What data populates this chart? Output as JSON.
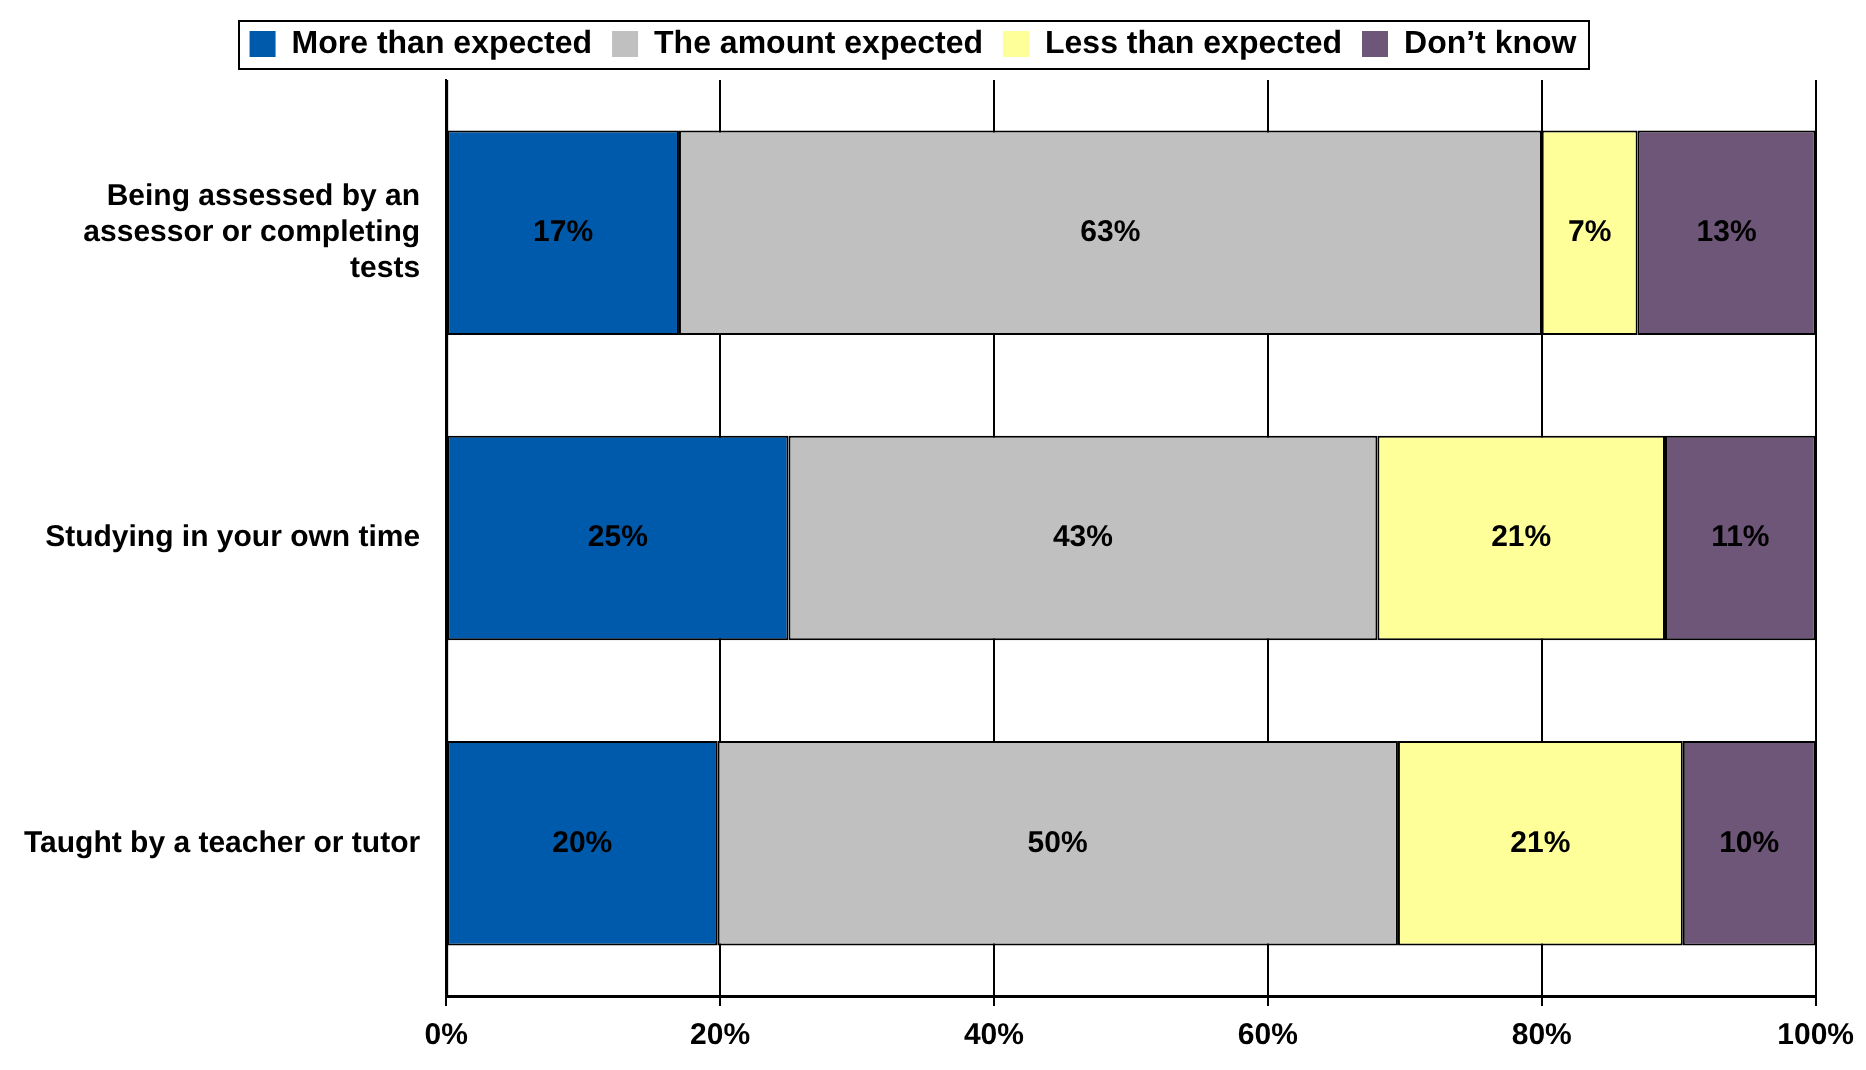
{
  "chart_data": {
    "type": "bar",
    "orientation": "horizontal",
    "stacked": true,
    "categories": [
      "Being assessed by an assessor or completing tests",
      "Studying in your own time",
      "Taught by a teacher or tutor"
    ],
    "series": [
      {
        "name": "More than expected",
        "color": "#005aab",
        "values": [
          17,
          25,
          19.8
        ],
        "value_labels": [
          "17%",
          "25%",
          "20%"
        ]
      },
      {
        "name": "The amount expected",
        "color": "#c0c0c0",
        "values": [
          63,
          43,
          49.7
        ],
        "value_labels": [
          "63%",
          "43%",
          "50%"
        ]
      },
      {
        "name": "Less than expected",
        "color": "#ffff99",
        "values": [
          7,
          21,
          20.8
        ],
        "value_labels": [
          "7%",
          "21%",
          "21%"
        ]
      },
      {
        "name": "Don’t know",
        "color": "#6e5678",
        "values": [
          13,
          11,
          9.7
        ],
        "value_labels": [
          "13%",
          "11%",
          "10%"
        ]
      }
    ],
    "xlim": [
      0,
      100
    ],
    "xticks": [
      {
        "value": 0,
        "label": "0%"
      },
      {
        "value": 20,
        "label": "20%"
      },
      {
        "value": 40,
        "label": "40%"
      },
      {
        "value": 60,
        "label": "60%"
      },
      {
        "value": 80,
        "label": "80%"
      },
      {
        "value": 100,
        "label": "100%"
      }
    ],
    "grid": "x",
    "legend": "top"
  }
}
